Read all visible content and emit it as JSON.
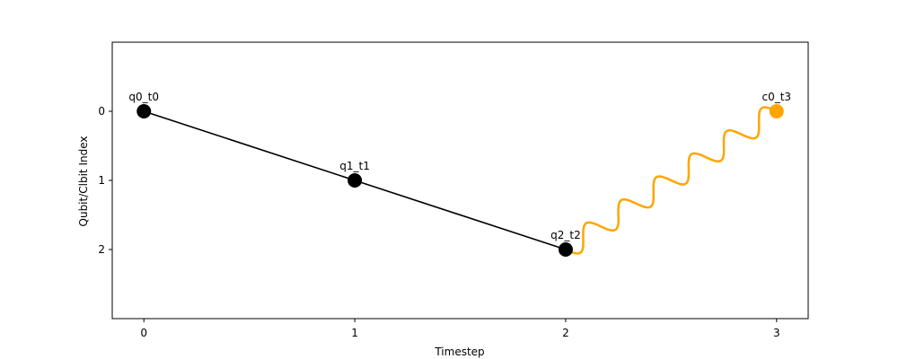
{
  "chart_data": {
    "type": "scatter",
    "title": "",
    "xlabel": "Timestep",
    "ylabel": "Qubit/Clbit Index",
    "xlim": [
      -0.15,
      3.15
    ],
    "ylim": [
      3.0,
      -1.0
    ],
    "y_inverted": true,
    "x_ticks": [
      0,
      1,
      2,
      3
    ],
    "y_ticks": [
      0,
      1,
      2
    ],
    "grid": false,
    "nodes": [
      {
        "label": "q0_t0",
        "x": 0,
        "y": 0,
        "color": "#000000"
      },
      {
        "label": "q1_t1",
        "x": 1,
        "y": 1,
        "color": "#000000"
      },
      {
        "label": "q2_t2",
        "x": 2,
        "y": 2,
        "color": "#000000"
      },
      {
        "label": "c0_t3",
        "x": 3,
        "y": 0,
        "color": "#FFA500"
      }
    ],
    "edges": [
      {
        "from": "q0_t0",
        "to": "q1_t1",
        "style": "straight",
        "color": "#000000"
      },
      {
        "from": "q1_t1",
        "to": "q2_t2",
        "style": "straight",
        "color": "#000000"
      },
      {
        "from": "q2_t2",
        "to": "c0_t3",
        "style": "wavy",
        "color": "#FFA500"
      }
    ]
  }
}
